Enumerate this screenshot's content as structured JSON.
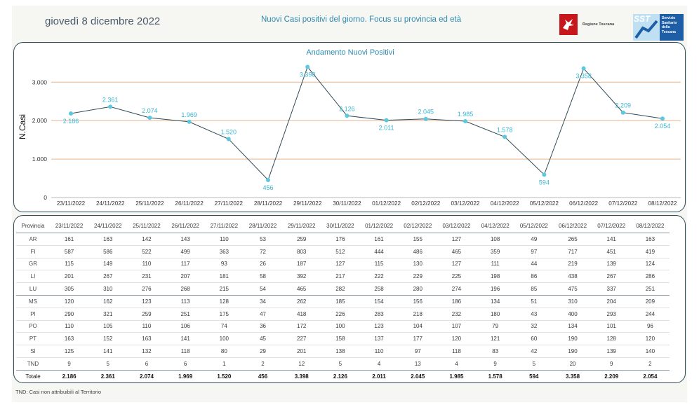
{
  "header": {
    "date": "giovedì 8 dicembre 2022",
    "subtitle": "Nuovi Casi positivi del giorno. Focus su provincia ed età",
    "logo_rt_text": "Regione Toscana",
    "logo_sst_word": "SST",
    "logo_sst_lines": [
      "Servizio",
      "Sanitario",
      "della",
      "Toscana"
    ]
  },
  "colors": {
    "line": "#2f4b57",
    "marker": "#5bc8dd",
    "label": "#3ab5d0",
    "grid": "#e8b48c",
    "panel_border": "#2f4b57"
  },
  "chart_data": {
    "type": "line",
    "title": "Andamento Nuovi Positivi",
    "ylabel": "N.Casi",
    "ylim": [
      0,
      3500
    ],
    "yticks": [
      "0",
      "1.000",
      "2.000",
      "3.000"
    ],
    "ytick_values": [
      0,
      1000,
      2000,
      3000
    ],
    "grid": true,
    "categories": [
      "23/11/2022",
      "24/11/2022",
      "25/11/2022",
      "26/11/2022",
      "27/11/2022",
      "28/11/2022",
      "29/11/2022",
      "30/11/2022",
      "01/12/2022",
      "02/12/2022",
      "03/12/2022",
      "04/12/2022",
      "05/12/2022",
      "06/12/2022",
      "07/12/2022",
      "08/12/2022"
    ],
    "values": [
      2186,
      2361,
      2074,
      1969,
      1520,
      456,
      3398,
      2126,
      2011,
      2045,
      1985,
      1578,
      594,
      3358,
      2209,
      2054
    ],
    "value_labels": [
      "2.186",
      "2.361",
      "2.074",
      "1.969",
      "1.520",
      "456",
      "3.398",
      "2.126",
      "2.011",
      "2.045",
      "1.985",
      "1.578",
      "594",
      "3.358",
      "2.209",
      "2.054"
    ],
    "label_positions": [
      "below",
      "above",
      "above",
      "above",
      "above",
      "below",
      "below",
      "above",
      "below",
      "above",
      "above",
      "above",
      "below",
      "below",
      "above",
      "below"
    ]
  },
  "table": {
    "columns": [
      "Provincia",
      "23/11/2022",
      "24/11/2022",
      "25/11/2022",
      "26/11/2022",
      "27/11/2022",
      "28/11/2022",
      "29/11/2022",
      "30/11/2022",
      "01/12/2022",
      "02/12/2022",
      "03/12/2022",
      "04/12/2022",
      "05/12/2022",
      "06/12/2022",
      "07/12/2022",
      "08/12/2022"
    ],
    "rows": [
      {
        "prov": "AR",
        "values": [
          "161",
          "163",
          "142",
          "143",
          "110",
          "53",
          "259",
          "176",
          "161",
          "155",
          "127",
          "108",
          "49",
          "265",
          "141",
          "163"
        ]
      },
      {
        "prov": "FI",
        "values": [
          "587",
          "586",
          "522",
          "499",
          "363",
          "72",
          "803",
          "512",
          "444",
          "486",
          "465",
          "359",
          "97",
          "717",
          "451",
          "419"
        ]
      },
      {
        "prov": "GR",
        "values": [
          "115",
          "149",
          "110",
          "117",
          "93",
          "26",
          "187",
          "127",
          "115",
          "130",
          "127",
          "111",
          "44",
          "219",
          "139",
          "124"
        ]
      },
      {
        "prov": "LI",
        "values": [
          "201",
          "267",
          "231",
          "207",
          "181",
          "58",
          "392",
          "217",
          "222",
          "229",
          "225",
          "198",
          "86",
          "438",
          "267",
          "286"
        ]
      },
      {
        "prov": "LU",
        "values": [
          "305",
          "310",
          "276",
          "268",
          "215",
          "54",
          "465",
          "282",
          "258",
          "280",
          "274",
          "196",
          "85",
          "475",
          "337",
          "251"
        ]
      },
      {
        "prov": "MS",
        "values": [
          "120",
          "162",
          "123",
          "113",
          "128",
          "34",
          "262",
          "185",
          "154",
          "156",
          "186",
          "134",
          "51",
          "310",
          "204",
          "209"
        ]
      },
      {
        "prov": "PI",
        "values": [
          "290",
          "321",
          "259",
          "251",
          "175",
          "47",
          "418",
          "226",
          "283",
          "218",
          "232",
          "180",
          "43",
          "400",
          "293",
          "244"
        ]
      },
      {
        "prov": "PO",
        "values": [
          "110",
          "105",
          "110",
          "106",
          "74",
          "36",
          "172",
          "100",
          "123",
          "104",
          "107",
          "79",
          "32",
          "134",
          "101",
          "96"
        ]
      },
      {
        "prov": "PT",
        "values": [
          "163",
          "152",
          "163",
          "141",
          "100",
          "45",
          "227",
          "158",
          "137",
          "177",
          "120",
          "121",
          "60",
          "190",
          "128",
          "120"
        ]
      },
      {
        "prov": "SI",
        "values": [
          "125",
          "141",
          "132",
          "118",
          "80",
          "29",
          "201",
          "138",
          "110",
          "97",
          "118",
          "83",
          "42",
          "190",
          "139",
          "140"
        ]
      },
      {
        "prov": "TND",
        "values": [
          "9",
          "5",
          "6",
          "6",
          "1",
          "2",
          "12",
          "5",
          "4",
          "13",
          "4",
          "9",
          "5",
          "20",
          "9",
          "2"
        ]
      }
    ],
    "total": {
      "prov": "Totale",
      "values": [
        "2.186",
        "2.361",
        "2.074",
        "1.969",
        "1.520",
        "456",
        "3.398",
        "2.126",
        "2.011",
        "2.045",
        "1.985",
        "1.578",
        "594",
        "3.358",
        "2.209",
        "2.054"
      ]
    }
  },
  "footnote": "TND: Casi non attribuibili al Territorio"
}
